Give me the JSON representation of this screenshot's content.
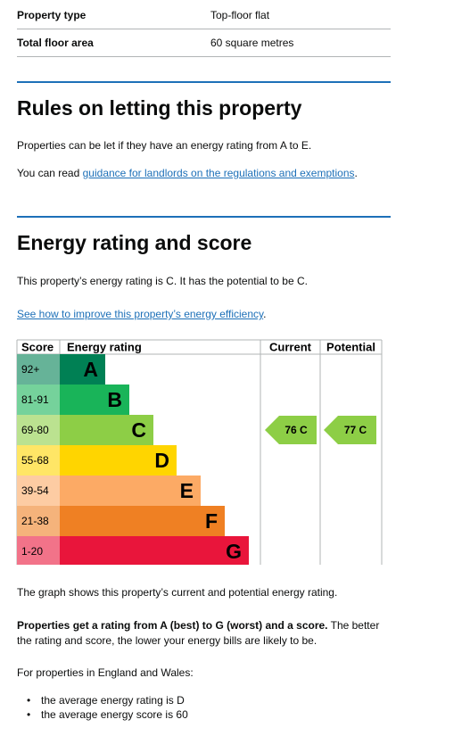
{
  "summary": {
    "rows": [
      [
        "Property type",
        "Top-floor flat"
      ],
      [
        "Total floor area",
        "60 square metres"
      ]
    ]
  },
  "letting": {
    "title": "Rules on letting this property",
    "text": "Properties can be let if they have an energy rating from A to E.",
    "guidance": {
      "before": "You can read ",
      "link": "guidance for landlords on the regulations and exemptions",
      "after": "."
    }
  },
  "energy": {
    "title": "Energy rating and score",
    "text": "This property’s energy rating is C. It has the potential to be C.",
    "improve": {
      "link": "See how to improve this property’s energy efficiency",
      "after": "."
    }
  },
  "chart": {
    "headers": [
      "Score",
      "Energy rating",
      "Current",
      "Potential"
    ],
    "bands": [
      {
        "score": "92+",
        "letter": "A"
      },
      {
        "score": "81-91",
        "letter": "B"
      },
      {
        "score": "69-80",
        "letter": "C"
      },
      {
        "score": "55-68",
        "letter": "D"
      },
      {
        "score": "39-54",
        "letter": "E"
      },
      {
        "score": "21-38",
        "letter": "F"
      },
      {
        "score": "1-20",
        "letter": "G"
      }
    ],
    "current": "76 C",
    "potential": "77 C"
  },
  "notes": {
    "graph": "The graph shows this property’s current and potential energy rating.",
    "bold": "Properties get a rating from A (best) to G (worst) and a score.",
    "rest": " The better the rating and score, the lower your energy bills are likely to be.",
    "average_intro": "For properties in England and Wales:",
    "bullets": [
      "the average energy rating is D",
      "the average energy score is 60"
    ]
  }
}
